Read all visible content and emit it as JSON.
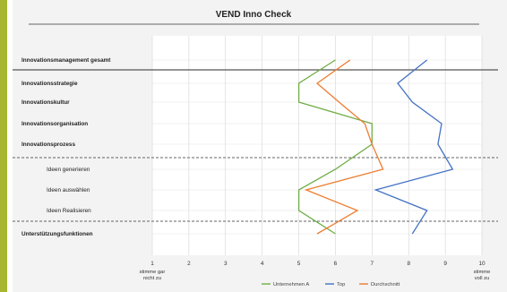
{
  "chart_data": {
    "type": "line",
    "title": "VEND Inno Check",
    "categories": [
      {
        "label": "Innovationsmanagement gesamt",
        "bold": true
      },
      {
        "label": "Innovationsstrategie",
        "bold": true
      },
      {
        "label": "Innovationskultur",
        "bold": true
      },
      {
        "label": "Innovationsorganisation",
        "bold": true
      },
      {
        "label": "Innovationsprozess",
        "bold": true
      },
      {
        "label": "Ideen generieren",
        "bold": false
      },
      {
        "label": "Ideen auswählen",
        "bold": false
      },
      {
        "label": "Ideen Realisieren",
        "bold": false
      },
      {
        "label": "Unterstützungsfunktionen",
        "bold": true
      }
    ],
    "x_ticks": [
      1,
      2,
      3,
      4,
      5,
      6,
      7,
      8,
      9,
      10
    ],
    "x_tick_sublabels": {
      "1": "stimme gar\nnicht zu",
      "10": "stimme\nvoll zu"
    },
    "xlim": [
      1,
      10
    ],
    "series": [
      {
        "name": "Unternehmen A",
        "color": "#70ad47",
        "points": [
          {
            "cat": 0,
            "x": 6.0
          },
          {
            "cat": 1,
            "x": 5.0
          },
          {
            "cat": 2,
            "x": 5.0
          },
          {
            "cat": 3,
            "x": 7.0
          },
          {
            "cat": 4,
            "x": 7.0
          },
          {
            "cat": 5,
            "x": 6.0
          },
          {
            "cat": 6,
            "x": 5.0
          },
          {
            "cat": 7,
            "x": 5.0
          },
          {
            "cat": 8,
            "x": 6.0
          }
        ]
      },
      {
        "name": "Top",
        "color": "#4472c4",
        "points": [
          {
            "cat": 0,
            "x": 8.5
          },
          {
            "cat": 1,
            "x": 7.7
          },
          {
            "cat": 2,
            "x": 8.1
          },
          {
            "cat": 3,
            "x": 8.9
          },
          {
            "cat": 4,
            "x": 8.8
          },
          {
            "cat": 5,
            "x": 9.2
          },
          {
            "cat": 6,
            "x": 7.1
          },
          {
            "cat": 7,
            "x": 8.5
          },
          {
            "cat": 8,
            "x": 8.1
          }
        ]
      },
      {
        "name": "Durchschnitt",
        "color": "#ed7d31",
        "points": [
          {
            "cat": 0,
            "x": 6.4
          },
          {
            "cat": 1,
            "x": 5.5
          },
          {
            "cat": 2,
            "x": 6.1
          },
          {
            "cat": 3,
            "x": 6.8
          },
          {
            "cat": 4,
            "x": 7.0
          },
          {
            "cat": 5,
            "x": 7.3
          },
          {
            "cat": 6,
            "x": 5.2
          },
          {
            "cat": 7,
            "x": 6.6
          },
          {
            "cat": 8,
            "x": 5.5
          }
        ]
      }
    ],
    "grid": true,
    "legend_position": "bottom",
    "accent_color": "#a8b52e"
  }
}
